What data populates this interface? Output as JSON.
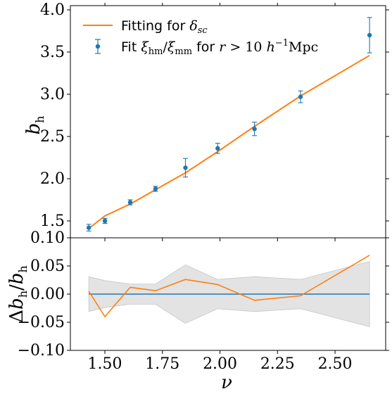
{
  "chart_data": [
    {
      "type": "scatter",
      "ylabel": "b_h",
      "ylim": [
        1.3,
        4.05
      ],
      "xlim": [
        1.35,
        2.72
      ],
      "yticks": [
        1.5,
        2.0,
        2.5,
        3.0,
        3.5,
        4.0
      ],
      "ytick_labels": [
        "1.5",
        "2.0",
        "2.5",
        "3.0",
        "3.5",
        "4.0"
      ],
      "series": [
        {
          "name": "Fitting for δ_sc",
          "kind": "line",
          "color": "#ff7f0e",
          "x": [
            1.43,
            1.5,
            1.61,
            1.72,
            1.85,
            1.99,
            2.15,
            2.35,
            2.65
          ],
          "y": [
            1.41,
            1.56,
            1.7,
            1.87,
            2.07,
            2.32,
            2.62,
            2.98,
            3.46
          ]
        },
        {
          "name": "Fit ξhm/ξmm for r > 10 h⁻¹Mpc",
          "kind": "errorbar",
          "color": "#1f77b4",
          "x": [
            1.43,
            1.5,
            1.61,
            1.72,
            1.85,
            1.99,
            2.15,
            2.35,
            2.65
          ],
          "y": [
            1.42,
            1.5,
            1.72,
            1.88,
            2.13,
            2.36,
            2.59,
            2.97,
            3.7
          ],
          "yerr": [
            0.04,
            0.03,
            0.03,
            0.03,
            0.11,
            0.06,
            0.08,
            0.07,
            0.21
          ]
        }
      ],
      "legend_position": "top-left"
    },
    {
      "type": "line",
      "xlabel": "ν",
      "ylabel": "Δb_h/b_h",
      "xlim": [
        1.35,
        2.72
      ],
      "ylim": [
        -0.1,
        0.1
      ],
      "xticks": [
        1.5,
        1.75,
        2.0,
        2.25,
        2.5
      ],
      "xtick_labels": [
        "1.50",
        "1.75",
        "2.00",
        "2.25",
        "2.50"
      ],
      "yticks": [
        -0.1,
        -0.05,
        0.0,
        0.05,
        0.1
      ],
      "ytick_labels": [
        "−0.10",
        "−0.05",
        "0.00",
        "0.05",
        "0.10"
      ],
      "series": [
        {
          "kind": "line",
          "color": "#1f77b4",
          "x": [
            1.43,
            2.65
          ],
          "y": [
            0.0,
            0.0
          ]
        },
        {
          "kind": "line",
          "color": "#ff7f0e",
          "x": [
            1.43,
            1.5,
            1.61,
            1.72,
            1.85,
            1.99,
            2.15,
            2.35,
            2.65
          ],
          "y": [
            0.005,
            -0.04,
            0.012,
            0.006,
            0.026,
            0.017,
            -0.011,
            -0.003,
            0.069
          ]
        },
        {
          "kind": "band",
          "color": "#d9d9d9",
          "x": [
            1.43,
            1.5,
            1.61,
            1.72,
            1.85,
            1.99,
            2.15,
            2.35,
            2.65
          ],
          "upper": [
            0.031,
            0.024,
            0.018,
            0.018,
            0.052,
            0.026,
            0.031,
            0.026,
            0.058
          ],
          "lower": [
            -0.031,
            -0.024,
            -0.018,
            -0.018,
            -0.052,
            -0.026,
            -0.031,
            -0.026,
            -0.058
          ]
        }
      ]
    }
  ]
}
